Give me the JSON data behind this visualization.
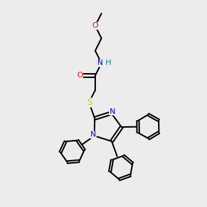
{
  "bg_color": "#ececec",
  "atom_colors": {
    "C": "#000000",
    "N": "#0000cc",
    "O": "#ff0000",
    "S": "#cccc00",
    "H": "#008080"
  },
  "bond_color": "#000000",
  "bond_width": 1.5,
  "figsize": [
    3.0,
    3.0
  ],
  "dpi": 100
}
